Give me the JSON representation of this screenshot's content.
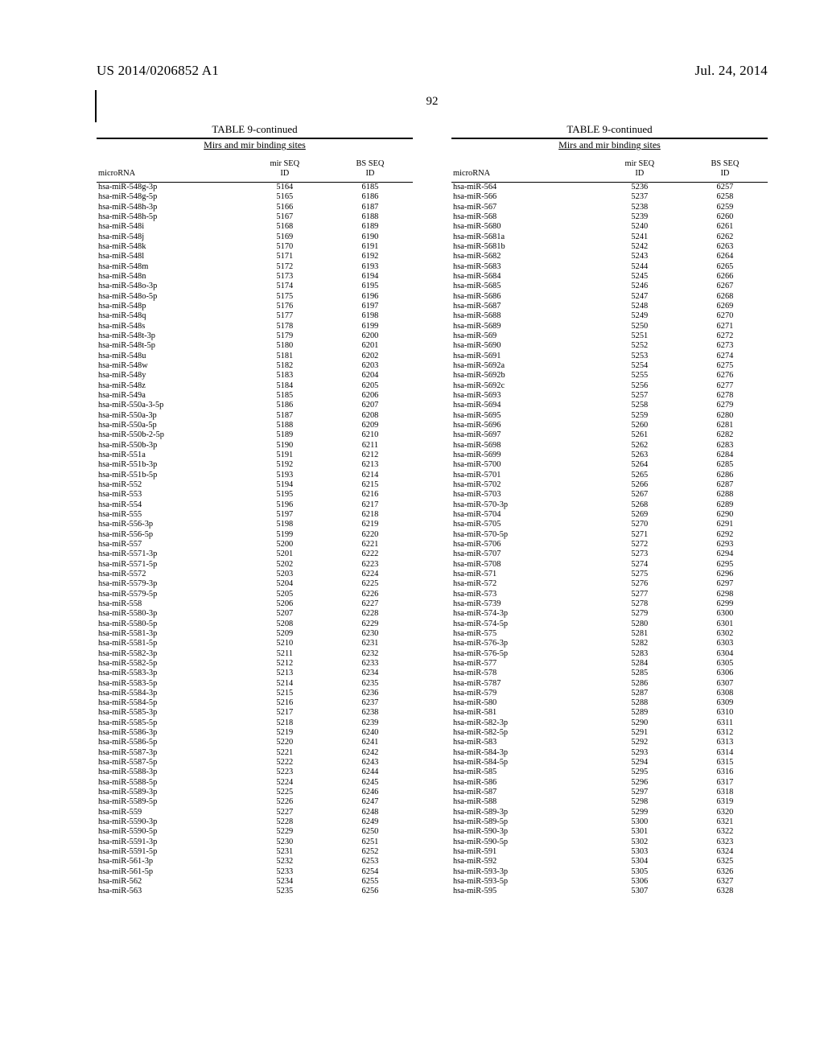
{
  "header": {
    "pub_number": "US 2014/0206852 A1",
    "pub_date": "Jul. 24, 2014",
    "page_number": "92"
  },
  "table_meta": {
    "title": "TABLE 9-continued",
    "subtitle": "Mirs and mir binding sites",
    "columns": [
      "microRNA",
      "mir SEQ\nID",
      "BS SEQ\nID"
    ]
  },
  "left_rows": [
    [
      "hsa-miR-548g-3p",
      "5164",
      "6185"
    ],
    [
      "hsa-miR-548g-5p",
      "5165",
      "6186"
    ],
    [
      "hsa-miR-548h-3p",
      "5166",
      "6187"
    ],
    [
      "hsa-miR-548h-5p",
      "5167",
      "6188"
    ],
    [
      "hsa-miR-548i",
      "5168",
      "6189"
    ],
    [
      "hsa-miR-548j",
      "5169",
      "6190"
    ],
    [
      "hsa-miR-548k",
      "5170",
      "6191"
    ],
    [
      "hsa-miR-548l",
      "5171",
      "6192"
    ],
    [
      "hsa-miR-548m",
      "5172",
      "6193"
    ],
    [
      "hsa-miR-548n",
      "5173",
      "6194"
    ],
    [
      "hsa-miR-548o-3p",
      "5174",
      "6195"
    ],
    [
      "hsa-miR-548o-5p",
      "5175",
      "6196"
    ],
    [
      "hsa-miR-548p",
      "5176",
      "6197"
    ],
    [
      "hsa-miR-548q",
      "5177",
      "6198"
    ],
    [
      "hsa-miR-548s",
      "5178",
      "6199"
    ],
    [
      "hsa-miR-548t-3p",
      "5179",
      "6200"
    ],
    [
      "hsa-miR-548t-5p",
      "5180",
      "6201"
    ],
    [
      "hsa-miR-548u",
      "5181",
      "6202"
    ],
    [
      "hsa-miR-548w",
      "5182",
      "6203"
    ],
    [
      "hsa-miR-548y",
      "5183",
      "6204"
    ],
    [
      "hsa-miR-548z",
      "5184",
      "6205"
    ],
    [
      "hsa-miR-549a",
      "5185",
      "6206"
    ],
    [
      "hsa-miR-550a-3-5p",
      "5186",
      "6207"
    ],
    [
      "hsa-miR-550a-3p",
      "5187",
      "6208"
    ],
    [
      "hsa-miR-550a-5p",
      "5188",
      "6209"
    ],
    [
      "hsa-miR-550b-2-5p",
      "5189",
      "6210"
    ],
    [
      "hsa-miR-550b-3p",
      "5190",
      "6211"
    ],
    [
      "hsa-miR-551a",
      "5191",
      "6212"
    ],
    [
      "hsa-miR-551b-3p",
      "5192",
      "6213"
    ],
    [
      "hsa-miR-551b-5p",
      "5193",
      "6214"
    ],
    [
      "hsa-miR-552",
      "5194",
      "6215"
    ],
    [
      "hsa-miR-553",
      "5195",
      "6216"
    ],
    [
      "hsa-miR-554",
      "5196",
      "6217"
    ],
    [
      "hsa-miR-555",
      "5197",
      "6218"
    ],
    [
      "hsa-miR-556-3p",
      "5198",
      "6219"
    ],
    [
      "hsa-miR-556-5p",
      "5199",
      "6220"
    ],
    [
      "hsa-miR-557",
      "5200",
      "6221"
    ],
    [
      "hsa-miR-5571-3p",
      "5201",
      "6222"
    ],
    [
      "hsa-miR-5571-5p",
      "5202",
      "6223"
    ],
    [
      "hsa-miR-5572",
      "5203",
      "6224"
    ],
    [
      "hsa-miR-5579-3p",
      "5204",
      "6225"
    ],
    [
      "hsa-miR-5579-5p",
      "5205",
      "6226"
    ],
    [
      "hsa-miR-558",
      "5206",
      "6227"
    ],
    [
      "hsa-miR-5580-3p",
      "5207",
      "6228"
    ],
    [
      "hsa-miR-5580-5p",
      "5208",
      "6229"
    ],
    [
      "hsa-miR-5581-3p",
      "5209",
      "6230"
    ],
    [
      "hsa-miR-5581-5p",
      "5210",
      "6231"
    ],
    [
      "hsa-miR-5582-3p",
      "5211",
      "6232"
    ],
    [
      "hsa-miR-5582-5p",
      "5212",
      "6233"
    ],
    [
      "hsa-miR-5583-3p",
      "5213",
      "6234"
    ],
    [
      "hsa-miR-5583-5p",
      "5214",
      "6235"
    ],
    [
      "hsa-miR-5584-3p",
      "5215",
      "6236"
    ],
    [
      "hsa-miR-5584-5p",
      "5216",
      "6237"
    ],
    [
      "hsa-miR-5585-3p",
      "5217",
      "6238"
    ],
    [
      "hsa-miR-5585-5p",
      "5218",
      "6239"
    ],
    [
      "hsa-miR-5586-3p",
      "5219",
      "6240"
    ],
    [
      "hsa-miR-5586-5p",
      "5220",
      "6241"
    ],
    [
      "hsa-miR-5587-3p",
      "5221",
      "6242"
    ],
    [
      "hsa-miR-5587-5p",
      "5222",
      "6243"
    ],
    [
      "hsa-miR-5588-3p",
      "5223",
      "6244"
    ],
    [
      "hsa-miR-5588-5p",
      "5224",
      "6245"
    ],
    [
      "hsa-miR-5589-3p",
      "5225",
      "6246"
    ],
    [
      "hsa-miR-5589-5p",
      "5226",
      "6247"
    ],
    [
      "hsa-miR-559",
      "5227",
      "6248"
    ],
    [
      "hsa-miR-5590-3p",
      "5228",
      "6249"
    ],
    [
      "hsa-miR-5590-5p",
      "5229",
      "6250"
    ],
    [
      "hsa-miR-5591-3p",
      "5230",
      "6251"
    ],
    [
      "hsa-miR-5591-5p",
      "5231",
      "6252"
    ],
    [
      "hsa-miR-561-3p",
      "5232",
      "6253"
    ],
    [
      "hsa-miR-561-5p",
      "5233",
      "6254"
    ],
    [
      "hsa-miR-562",
      "5234",
      "6255"
    ],
    [
      "hsa-miR-563",
      "5235",
      "6256"
    ]
  ],
  "right_rows": [
    [
      "hsa-miR-564",
      "5236",
      "6257"
    ],
    [
      "hsa-miR-566",
      "5237",
      "6258"
    ],
    [
      "hsa-miR-567",
      "5238",
      "6259"
    ],
    [
      "hsa-miR-568",
      "5239",
      "6260"
    ],
    [
      "hsa-miR-5680",
      "5240",
      "6261"
    ],
    [
      "hsa-miR-5681a",
      "5241",
      "6262"
    ],
    [
      "hsa-miR-5681b",
      "5242",
      "6263"
    ],
    [
      "hsa-miR-5682",
      "5243",
      "6264"
    ],
    [
      "hsa-miR-5683",
      "5244",
      "6265"
    ],
    [
      "hsa-miR-5684",
      "5245",
      "6266"
    ],
    [
      "hsa-miR-5685",
      "5246",
      "6267"
    ],
    [
      "hsa-miR-5686",
      "5247",
      "6268"
    ],
    [
      "hsa-miR-5687",
      "5248",
      "6269"
    ],
    [
      "hsa-miR-5688",
      "5249",
      "6270"
    ],
    [
      "hsa-miR-5689",
      "5250",
      "6271"
    ],
    [
      "hsa-miR-569",
      "5251",
      "6272"
    ],
    [
      "hsa-miR-5690",
      "5252",
      "6273"
    ],
    [
      "hsa-miR-5691",
      "5253",
      "6274"
    ],
    [
      "hsa-miR-5692a",
      "5254",
      "6275"
    ],
    [
      "hsa-miR-5692b",
      "5255",
      "6276"
    ],
    [
      "hsa-miR-5692c",
      "5256",
      "6277"
    ],
    [
      "hsa-miR-5693",
      "5257",
      "6278"
    ],
    [
      "hsa-miR-5694",
      "5258",
      "6279"
    ],
    [
      "hsa-miR-5695",
      "5259",
      "6280"
    ],
    [
      "hsa-miR-5696",
      "5260",
      "6281"
    ],
    [
      "hsa-miR-5697",
      "5261",
      "6282"
    ],
    [
      "hsa-miR-5698",
      "5262",
      "6283"
    ],
    [
      "hsa-miR-5699",
      "5263",
      "6284"
    ],
    [
      "hsa-miR-5700",
      "5264",
      "6285"
    ],
    [
      "hsa-miR-5701",
      "5265",
      "6286"
    ],
    [
      "hsa-miR-5702",
      "5266",
      "6287"
    ],
    [
      "hsa-miR-5703",
      "5267",
      "6288"
    ],
    [
      "hsa-miR-570-3p",
      "5268",
      "6289"
    ],
    [
      "hsa-miR-5704",
      "5269",
      "6290"
    ],
    [
      "hsa-miR-5705",
      "5270",
      "6291"
    ],
    [
      "hsa-miR-570-5p",
      "5271",
      "6292"
    ],
    [
      "hsa-miR-5706",
      "5272",
      "6293"
    ],
    [
      "hsa-miR-5707",
      "5273",
      "6294"
    ],
    [
      "hsa-miR-5708",
      "5274",
      "6295"
    ],
    [
      "hsa-miR-571",
      "5275",
      "6296"
    ],
    [
      "hsa-miR-572",
      "5276",
      "6297"
    ],
    [
      "hsa-miR-573",
      "5277",
      "6298"
    ],
    [
      "hsa-miR-5739",
      "5278",
      "6299"
    ],
    [
      "hsa-miR-574-3p",
      "5279",
      "6300"
    ],
    [
      "hsa-miR-574-5p",
      "5280",
      "6301"
    ],
    [
      "hsa-miR-575",
      "5281",
      "6302"
    ],
    [
      "hsa-miR-576-3p",
      "5282",
      "6303"
    ],
    [
      "hsa-miR-576-5p",
      "5283",
      "6304"
    ],
    [
      "hsa-miR-577",
      "5284",
      "6305"
    ],
    [
      "hsa-miR-578",
      "5285",
      "6306"
    ],
    [
      "hsa-miR-5787",
      "5286",
      "6307"
    ],
    [
      "hsa-miR-579",
      "5287",
      "6308"
    ],
    [
      "hsa-miR-580",
      "5288",
      "6309"
    ],
    [
      "hsa-miR-581",
      "5289",
      "6310"
    ],
    [
      "hsa-miR-582-3p",
      "5290",
      "6311"
    ],
    [
      "hsa-miR-582-5p",
      "5291",
      "6312"
    ],
    [
      "hsa-miR-583",
      "5292",
      "6313"
    ],
    [
      "hsa-miR-584-3p",
      "5293",
      "6314"
    ],
    [
      "hsa-miR-584-5p",
      "5294",
      "6315"
    ],
    [
      "hsa-miR-585",
      "5295",
      "6316"
    ],
    [
      "hsa-miR-586",
      "5296",
      "6317"
    ],
    [
      "hsa-miR-587",
      "5297",
      "6318"
    ],
    [
      "hsa-miR-588",
      "5298",
      "6319"
    ],
    [
      "hsa-miR-589-3p",
      "5299",
      "6320"
    ],
    [
      "hsa-miR-589-5p",
      "5300",
      "6321"
    ],
    [
      "hsa-miR-590-3p",
      "5301",
      "6322"
    ],
    [
      "hsa-miR-590-5p",
      "5302",
      "6323"
    ],
    [
      "hsa-miR-591",
      "5303",
      "6324"
    ],
    [
      "hsa-miR-592",
      "5304",
      "6325"
    ],
    [
      "hsa-miR-593-3p",
      "5305",
      "6326"
    ],
    [
      "hsa-miR-593-5p",
      "5306",
      "6327"
    ],
    [
      "hsa-miR-595",
      "5307",
      "6328"
    ]
  ]
}
